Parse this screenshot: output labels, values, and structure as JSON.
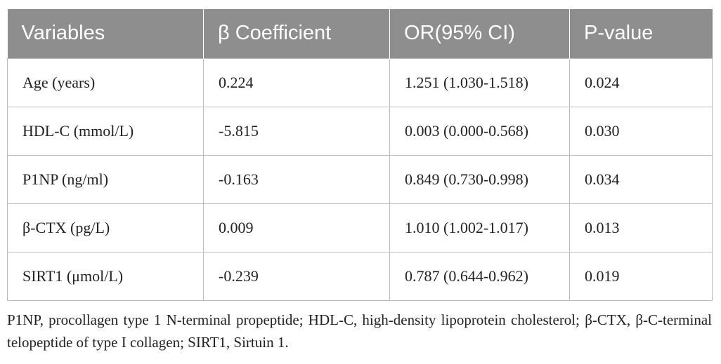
{
  "table": {
    "headers": [
      "Variables",
      "β Coefficient",
      "OR(95% CI)",
      "P-value"
    ],
    "rows": [
      [
        "Age (years)",
        "0.224",
        "1.251 (1.030-1.518)",
        "0.024"
      ],
      [
        "HDL-C (mmol/L)",
        "-5.815",
        "0.003 (0.000-0.568)",
        "0.030"
      ],
      [
        "P1NP (ng/ml)",
        "-0.163",
        "0.849 (0.730-0.998)",
        "0.034"
      ],
      [
        "β-CTX (pg/L)",
        "0.009",
        "1.010 (1.002-1.017)",
        "0.013"
      ],
      [
        "SIRT1 (μmol/L)",
        "-0.239",
        "0.787 (0.644-0.962)",
        "0.019"
      ]
    ]
  },
  "footnote": "P1NP, procollagen type 1 N-terminal propeptide; HDL-C, high-density lipoprotein cholesterol; β-CTX, β-C-terminal telopeptide of type I collagen; SIRT1, Sirtuin 1.",
  "colors": {
    "header_bg": "#8e8e8e",
    "header_text": "#ffffff",
    "cell_border": "#bcbcbc"
  }
}
